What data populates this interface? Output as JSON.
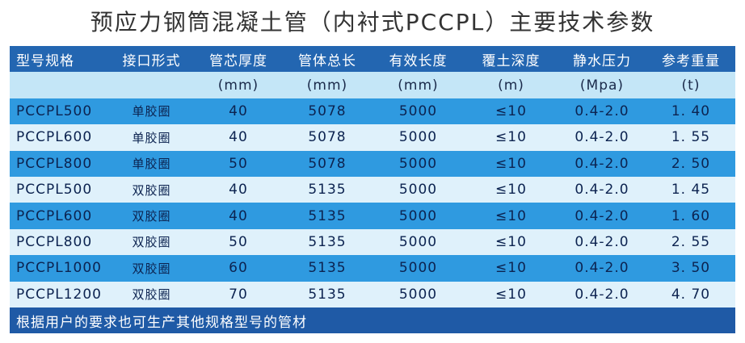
{
  "title": "预应力钢筒混凝土管（内衬式PCCPL）主要技术参数",
  "table": {
    "header": [
      "型号规格",
      "接口形式",
      "管芯厚度",
      "管体总长",
      "有效长度",
      "覆土深度",
      "静水压力",
      "参考重量"
    ],
    "units": [
      "(mm)",
      "(mm)",
      "(mm)",
      "(m)",
      "(Mpa)",
      "(t)"
    ],
    "rows": [
      [
        "PCCPL500",
        "单胶圈",
        "40",
        "5078",
        "5000",
        "≤10",
        "0.4-2.0",
        "1. 40"
      ],
      [
        "PCCPL600",
        "单胶圈",
        "40",
        "5078",
        "5000",
        "≤10",
        "0.4-2.0",
        "1. 55"
      ],
      [
        "PCCPL800",
        "单胶圈",
        "50",
        "5078",
        "5000",
        "≤10",
        "0.4-2.0",
        "2. 50"
      ],
      [
        "PCCPL500",
        "双胶圈",
        "40",
        "5135",
        "5000",
        "≤10",
        "0.4-2.0",
        "1. 45"
      ],
      [
        "PCCPL600",
        "双胶圈",
        "40",
        "5135",
        "5000",
        "≤10",
        "0.4-2.0",
        "1. 60"
      ],
      [
        "PCCPL800",
        "双胶圈",
        "50",
        "5135",
        "5000",
        "≤10",
        "0.4-2.0",
        "2. 55"
      ],
      [
        "PCCPL1000",
        "双胶圈",
        "60",
        "5135",
        "5000",
        "≤10",
        "0.4-2.0",
        "3. 50"
      ],
      [
        "PCCPL1200",
        "双胶圈",
        "70",
        "5135",
        "5000",
        "≤10",
        "0.4-2.0",
        "4. 70"
      ]
    ],
    "footer": "根据用户的要求也可生产其他规格型号的管材"
  }
}
